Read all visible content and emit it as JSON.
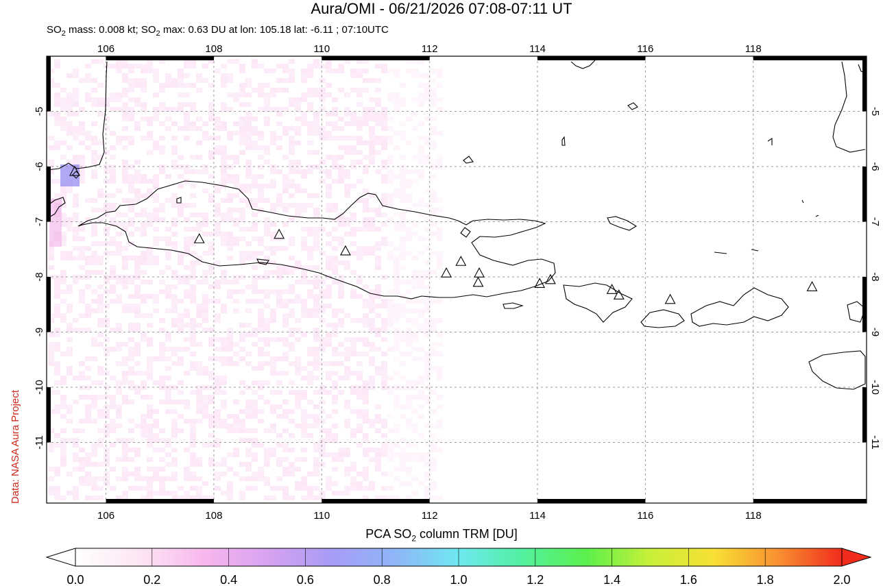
{
  "header": {
    "title": "Aura/OMI - 06/21/2026 07:08-07:11 UT",
    "subtitle_prefix": "SO",
    "subtitle_sub1": "2",
    "subtitle_mid": " mass: 0.008 kt; SO",
    "subtitle_sub2": "2",
    "subtitle_rest": " max: 0.63 DU at lon: 105.18 lat: -6.11 ; 07:10UTC"
  },
  "credit": "Data: NASA Aura Project",
  "map": {
    "lon_range": [
      104.9,
      120.1
    ],
    "lat_range": [
      -12.1,
      -4.0
    ],
    "lon_ticks": [
      "106",
      "108",
      "110",
      "112",
      "114",
      "116",
      "118"
    ],
    "lat_ticks": [
      "-5",
      "-6",
      "-7",
      "-8",
      "-9",
      "-10",
      "-11"
    ],
    "grid": "dashed",
    "volcano_marker": "triangle-icon",
    "max_marker": "diamond-icon"
  },
  "colorbar": {
    "title_prefix": "PCA SO",
    "title_sub": "2",
    "title_rest": " column TRM [DU]",
    "tick_labels": [
      "0.0",
      "0.2",
      "0.4",
      "0.6",
      "0.8",
      "1.0",
      "1.2",
      "1.4",
      "1.6",
      "1.8",
      "2.0"
    ],
    "range": [
      0.0,
      2.0
    ],
    "colors": [
      "#ffffff",
      "#fde6f4",
      "#f8b8ee",
      "#d8a2f0",
      "#a89cf6",
      "#8fb6f8",
      "#6ee8f0",
      "#52f0a0",
      "#5cf04c",
      "#c8f038",
      "#f8e034",
      "#f89030",
      "#f02c1c"
    ]
  }
}
